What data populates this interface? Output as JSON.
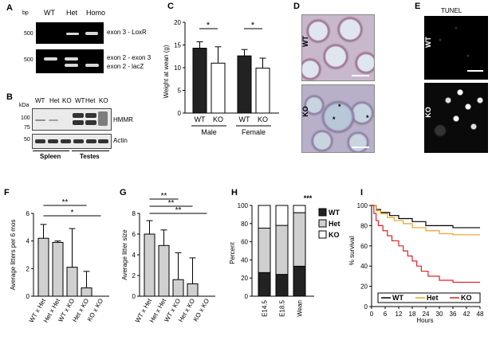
{
  "panelA": {
    "label": "A",
    "unit": "bp",
    "lanes": [
      "WT",
      "Het",
      "Homo"
    ],
    "marker_top": "500",
    "marker_bottom": "500",
    "band_top": "exon 3 - LoxR",
    "band_mid": "exon 2 - exon 3",
    "band_bottom": "exon 2 - lacZ"
  },
  "panelB": {
    "label": "B",
    "unit": "kDa",
    "lanes": [
      "WT",
      "Het",
      "KO",
      "WT",
      "Het",
      "KO"
    ],
    "markers_top": [
      "100",
      "75"
    ],
    "marker_bottom": "50",
    "protein1": "HMMR",
    "protein2": "Actin",
    "tissue1": "Spleen",
    "tissue2": "Testes"
  },
  "panelC": {
    "label": "C",
    "ylabel": "Weight at wean (g)",
    "yticks": [
      "0",
      "5",
      "10",
      "15",
      "20"
    ],
    "xticks": [
      "WT",
      "KO",
      "WT",
      "KO"
    ],
    "groups": [
      "Male",
      "Female"
    ],
    "sig": [
      "*",
      "*"
    ],
    "chart_data": {
      "type": "bar",
      "categories": [
        "WT",
        "KO",
        "WT",
        "KO"
      ],
      "groups": [
        "Male",
        "Female"
      ],
      "values": [
        14.3,
        11.0,
        12.6,
        9.9
      ],
      "errors": [
        1.4,
        3.6,
        1.4,
        2.2
      ],
      "colors": [
        "#222222",
        "#ffffff",
        "#222222",
        "#ffffff"
      ],
      "ylim": [
        0,
        20
      ],
      "ylabel": "Weight at wean (g)"
    }
  },
  "panelD": {
    "label": "D",
    "top": "WT",
    "bottom": "KO",
    "stars": [
      "*",
      "*",
      "*"
    ]
  },
  "panelE": {
    "label": "E",
    "title": "TUNEL",
    "top": "WT",
    "bottom": "KO"
  },
  "panelF": {
    "label": "F",
    "ylabel": "Average litters per 6 mos",
    "yticks": [
      "0",
      "2",
      "4",
      "6"
    ],
    "sig": [
      "**",
      "*"
    ],
    "chart_data": {
      "type": "bar",
      "categories": [
        "WT x Het",
        "Het x Het",
        "WT x KO",
        "Het x KO",
        "KO x KO"
      ],
      "values": [
        4.2,
        3.9,
        2.1,
        0.6,
        0
      ],
      "errors": [
        1.0,
        0.1,
        2.8,
        1.2,
        0
      ],
      "ylim": [
        0,
        6
      ],
      "ylabel": "Average litters per 6 mos"
    }
  },
  "panelG": {
    "label": "G",
    "ylabel": "Average litter size",
    "yticks": [
      "0",
      "2",
      "4",
      "6",
      "8"
    ],
    "sig": [
      "**",
      "**",
      "**"
    ],
    "chart_data": {
      "type": "bar",
      "categories": [
        "WT x Het",
        "Het x Het",
        "WT x KO",
        "Het x KO",
        "KO x KO"
      ],
      "values": [
        6.0,
        4.9,
        1.6,
        1.2,
        0
      ],
      "errors": [
        1.3,
        1.5,
        2.6,
        2.5,
        0
      ],
      "ylim": [
        0,
        8
      ],
      "ylabel": "Average litter size"
    }
  },
  "panelH": {
    "label": "H",
    "ylabel": "Percent",
    "yticks": [
      "0",
      "20",
      "40",
      "60",
      "80",
      "100"
    ],
    "sig": "***",
    "chart_data": {
      "type": "bar",
      "stacked": true,
      "categories": [
        "E14.5",
        "E18.5",
        "Wean"
      ],
      "series": [
        {
          "name": "WT",
          "values": [
            26,
            24,
            33
          ],
          "color": "#222222"
        },
        {
          "name": "Het",
          "values": [
            49,
            54,
            59
          ],
          "color": "#cfcfcf"
        },
        {
          "name": "KO",
          "values": [
            25,
            22,
            8
          ],
          "color": "#ffffff"
        }
      ],
      "ylim": [
        0,
        100
      ],
      "ylabel": "Percent"
    }
  },
  "panelI": {
    "label": "I",
    "ylabel": "% survival",
    "xlabel": "Hours",
    "yticks": [
      "0",
      "20",
      "40",
      "60",
      "80",
      "100"
    ],
    "xticks": [
      "0",
      "6",
      "12",
      "18",
      "24",
      "30",
      "36",
      "42",
      "48"
    ],
    "chart_data": {
      "type": "line",
      "step": true,
      "xlim": [
        0,
        48
      ],
      "ylim": [
        0,
        100
      ],
      "series": [
        {
          "name": "WT",
          "color": "#000000",
          "x": [
            0,
            2,
            4,
            8,
            12,
            18,
            24,
            36,
            48
          ],
          "y": [
            100,
            96,
            93,
            90,
            87,
            84,
            80,
            78,
            78
          ]
        },
        {
          "name": "Het",
          "color": "#f0a020",
          "x": [
            0,
            2,
            4,
            7,
            10,
            14,
            18,
            24,
            30,
            36,
            48
          ],
          "y": [
            100,
            95,
            92,
            88,
            85,
            82,
            78,
            75,
            72,
            71,
            71
          ]
        },
        {
          "name": "KO",
          "color": "#e0202e",
          "x": [
            0,
            1,
            2,
            3,
            5,
            7,
            9,
            12,
            14,
            16,
            18,
            20,
            22,
            25,
            30,
            36,
            48
          ],
          "y": [
            100,
            92,
            85,
            80,
            75,
            70,
            65,
            60,
            55,
            50,
            45,
            40,
            35,
            30,
            26,
            24,
            24
          ]
        }
      ]
    }
  }
}
